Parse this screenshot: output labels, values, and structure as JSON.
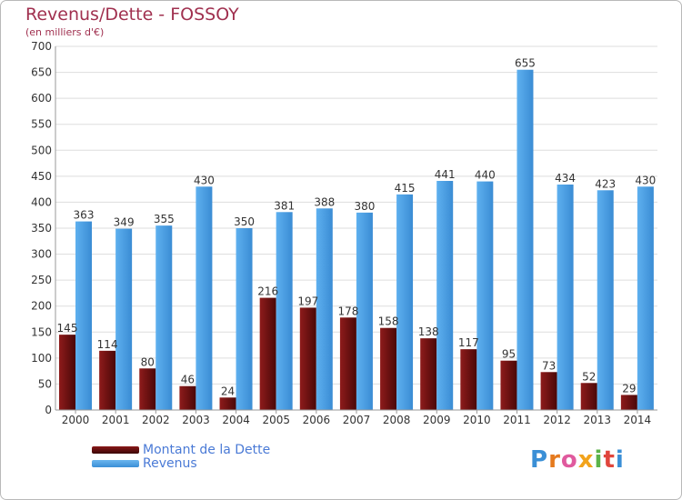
{
  "title": "Revenus/Dette - FOSSOY",
  "subtitle": "(en milliers d'€)",
  "logo": {
    "text": "Proxiti"
  },
  "colors": {
    "debt": "#6b0f0f",
    "revenue": "#3c95dd",
    "grid": "#dddddd",
    "title": "#a0304f",
    "legend_text": "#4a7ad6"
  },
  "legend": {
    "debt_label": "Montant de la Dette",
    "revenue_label": "Revenus"
  },
  "chart_data": {
    "type": "bar",
    "title": "Revenus/Dette - FOSSOY",
    "ylabel": "(en milliers d'€)",
    "ylim": [
      0,
      700
    ],
    "yticks": [
      0,
      50,
      100,
      150,
      200,
      250,
      300,
      350,
      400,
      450,
      500,
      550,
      600,
      650,
      700
    ],
    "categories": [
      "2000",
      "2001",
      "2002",
      "2003",
      "2004",
      "2005",
      "2006",
      "2007",
      "2008",
      "2009",
      "2010",
      "2011",
      "2012",
      "2013",
      "2014"
    ],
    "series": [
      {
        "name": "Montant de la Dette",
        "values": [
          145,
          114,
          80,
          46,
          24,
          216,
          197,
          178,
          158,
          138,
          117,
          95,
          73,
          52,
          29
        ]
      },
      {
        "name": "Revenus",
        "values": [
          363,
          349,
          355,
          430,
          350,
          381,
          388,
          380,
          415,
          441,
          440,
          655,
          434,
          423,
          430
        ]
      }
    ],
    "grid": true,
    "legend_position": "bottom-left"
  }
}
